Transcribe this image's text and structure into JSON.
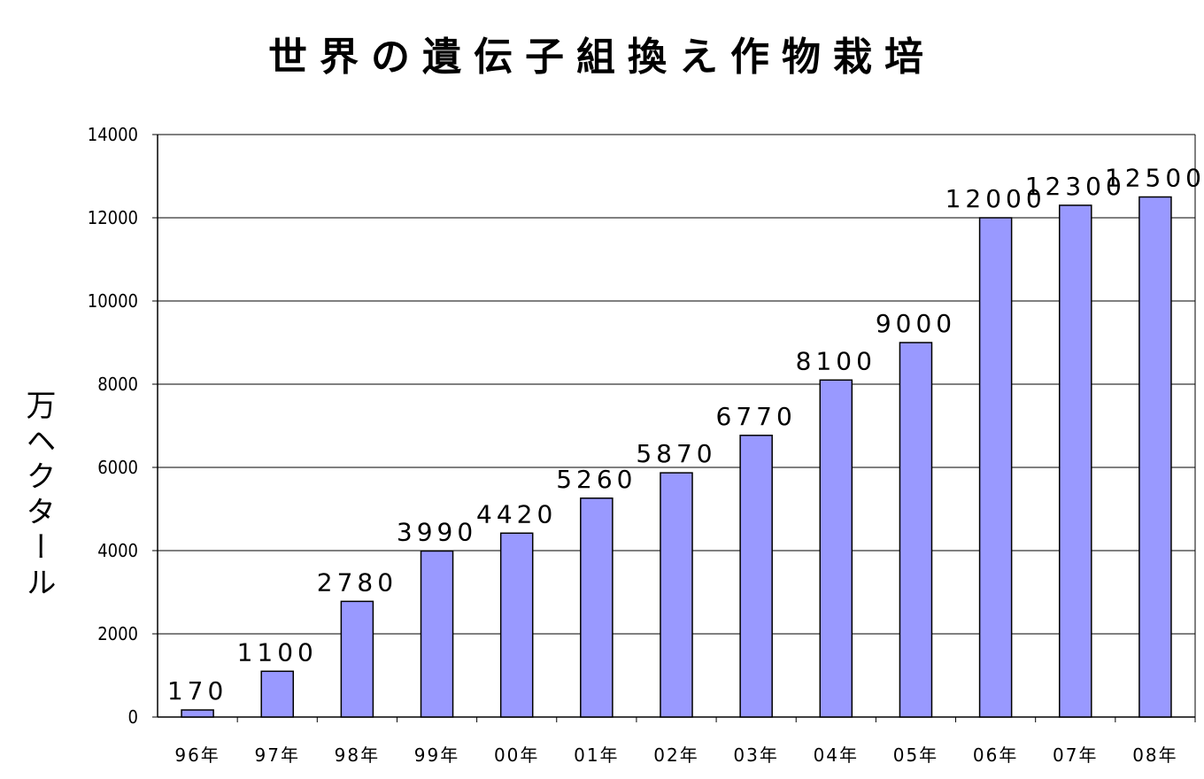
{
  "chart_data": {
    "type": "bar",
    "title": "世界の遺伝子組換え作物栽培",
    "ylabel": "万ヘクタール",
    "xlabel": "",
    "categories": [
      "96年",
      "97年",
      "98年",
      "99年",
      "00年",
      "01年",
      "02年",
      "03年",
      "04年",
      "05年",
      "06年",
      "07年",
      "08年"
    ],
    "values": [
      170,
      1100,
      2780,
      3990,
      4420,
      5260,
      5870,
      6770,
      8100,
      9000,
      12000,
      12300,
      12500
    ],
    "ylim": [
      0,
      14000
    ],
    "yticks": [
      "0",
      "2000",
      "4000",
      "6000",
      "8000",
      "10000",
      "12000",
      "14000"
    ],
    "grid": true,
    "bar_color": "#9999ff",
    "bar_stroke": "#000000"
  }
}
